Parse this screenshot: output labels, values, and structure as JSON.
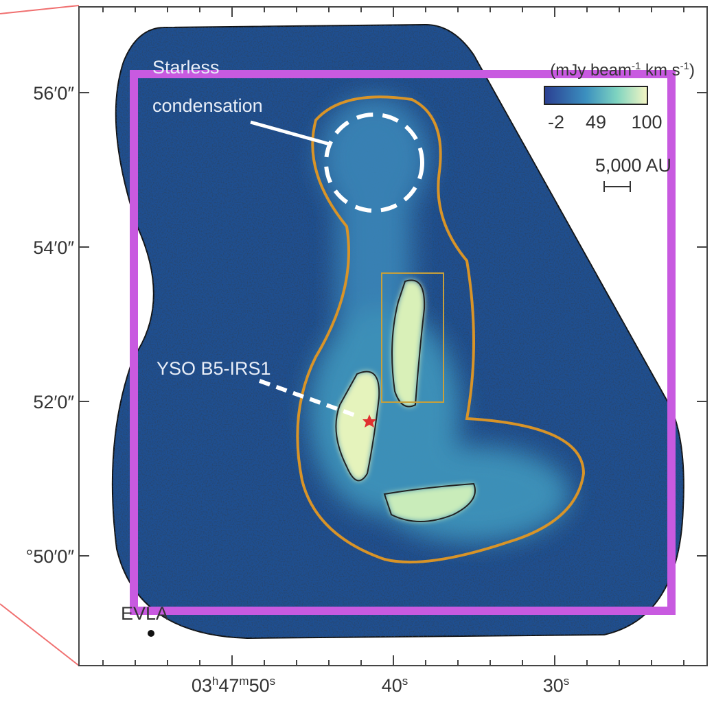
{
  "y_axis": {
    "ticks": [
      "56′0″",
      "54′0″",
      "52′0″",
      "°50′0″"
    ]
  },
  "x_axis": {
    "ticks": [
      [
        "03",
        "h",
        "47",
        "m",
        "50",
        "s"
      ],
      [
        "40",
        "s"
      ],
      [
        "30",
        "s"
      ]
    ]
  },
  "colorbar": {
    "unit": [
      "(mJy beam",
      "-1",
      " km s",
      "-1",
      ")"
    ],
    "ticks": [
      "-2",
      "49",
      "100"
    ]
  },
  "annotations": {
    "starless": [
      "Starless",
      "condensation"
    ],
    "yso": "YSO B5-IRS1",
    "scale_bar": "5,000 AU",
    "evla": "EVLA"
  }
}
